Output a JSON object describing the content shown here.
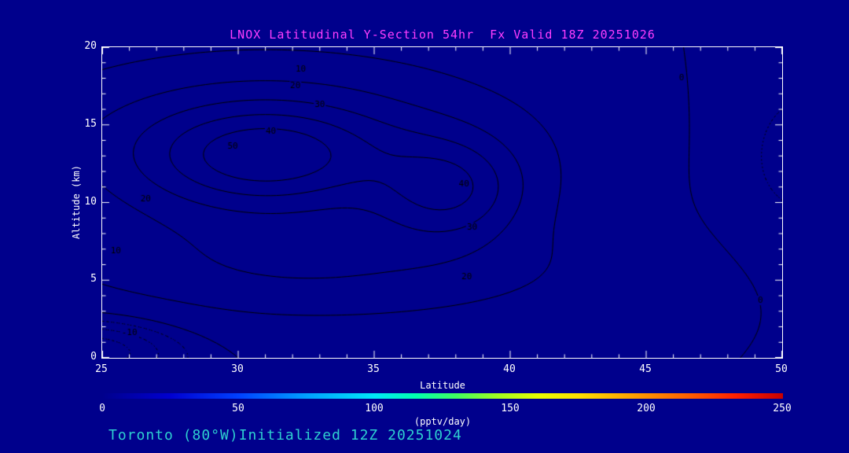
{
  "chart_data": {
    "type": "contour",
    "title": "LNOX Latitudinal Y-Section 54hr  Fx Valid 18Z 20251026",
    "xlabel": "Latitude",
    "ylabel": "Altitude (km)",
    "xlim": [
      25,
      50
    ],
    "ylim": [
      0,
      20
    ],
    "x_ticks": [
      25,
      30,
      35,
      40,
      45,
      50
    ],
    "y_ticks": [
      0,
      5,
      10,
      15,
      20
    ],
    "x_minor_step": 1,
    "y_minor_step": 1,
    "contour_levels": [
      -15,
      -10,
      -5,
      0,
      10,
      20,
      30,
      40,
      50,
      60
    ],
    "negative_contours_dotted": true,
    "contour_line_color": "#000000",
    "field_gaussians": [
      {
        "a": 30,
        "lat0": 31,
        "slat": 4.0,
        "alt0": 13,
        "salt": 3.0
      },
      {
        "a": 30,
        "lat0": 31,
        "slat": 9.5,
        "alt0": 13.5,
        "salt": 6.0
      },
      {
        "a": 28,
        "lat0": 37.8,
        "slat": 2.6,
        "alt0": 10.8,
        "salt": 3.2
      },
      {
        "a": 16,
        "lat0": 33,
        "slat": 10.0,
        "alt0": 5.5,
        "salt": 3.6
      },
      {
        "a": -20,
        "lat0": 24.5,
        "slat": 3.5,
        "alt0": 0.5,
        "salt": 2.2
      },
      {
        "a": -7,
        "lat0": 51,
        "slat": 4.0,
        "alt0": 13,
        "salt": 7.0
      }
    ],
    "contour_labels": [
      {
        "value": 10,
        "lat": 32.3,
        "alt": 18.6
      },
      {
        "value": 20,
        "lat": 32.1,
        "alt": 17.5
      },
      {
        "value": 30,
        "lat": 33.0,
        "alt": 16.3
      },
      {
        "value": 40,
        "lat": 31.2,
        "alt": 14.6
      },
      {
        "value": 50,
        "lat": 29.8,
        "alt": 13.6
      },
      {
        "value": 40,
        "lat": 38.3,
        "alt": 11.2
      },
      {
        "value": 30,
        "lat": 38.6,
        "alt": 8.4
      },
      {
        "value": 20,
        "lat": 38.4,
        "alt": 5.2
      },
      {
        "value": 20,
        "lat": 26.6,
        "alt": 10.2
      },
      {
        "value": 10,
        "lat": 25.5,
        "alt": 6.9
      },
      {
        "value": -10,
        "lat": 26.0,
        "alt": 1.6
      },
      {
        "value": 0,
        "lat": 49.2,
        "alt": 3.7
      },
      {
        "value": 0,
        "lat": 46.3,
        "alt": 18.0
      }
    ],
    "colorbar": {
      "units": "(pptv/day)",
      "min": 0,
      "max": 250,
      "ticks": [
        0,
        50,
        100,
        150,
        200,
        250
      ],
      "stops": [
        {
          "pos": 0.0,
          "color": "#00008c"
        },
        {
          "pos": 0.1,
          "color": "#0000d0"
        },
        {
          "pos": 0.2,
          "color": "#0040ff"
        },
        {
          "pos": 0.3,
          "color": "#00a0ff"
        },
        {
          "pos": 0.4,
          "color": "#00e8f8"
        },
        {
          "pos": 0.46,
          "color": "#00ffb0"
        },
        {
          "pos": 0.52,
          "color": "#40ff60"
        },
        {
          "pos": 0.58,
          "color": "#a0ff20"
        },
        {
          "pos": 0.64,
          "color": "#e8ff00"
        },
        {
          "pos": 0.7,
          "color": "#ffe000"
        },
        {
          "pos": 0.78,
          "color": "#ffa000"
        },
        {
          "pos": 0.86,
          "color": "#ff6000"
        },
        {
          "pos": 0.93,
          "color": "#ff2000"
        },
        {
          "pos": 1.0,
          "color": "#c80000"
        }
      ]
    }
  },
  "caption": {
    "text": "Toronto (80°W)Initialized 12Z 20251024"
  },
  "colors": {
    "background": "#00008c",
    "frame": "#ffffff",
    "axis_text": "#ffffff",
    "title": "#ff3dff",
    "caption": "#2ed0d0"
  }
}
